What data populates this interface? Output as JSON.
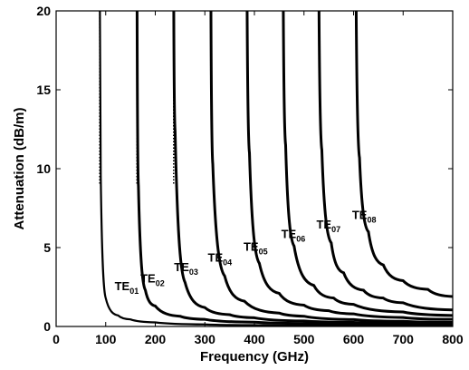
{
  "chart_data": {
    "type": "line",
    "title": "",
    "xlabel": "Frequency (GHz)",
    "ylabel": "Attenuation (dB/m)",
    "xlim": [
      0,
      800
    ],
    "ylim": [
      0,
      20
    ],
    "xticks": [
      0,
      100,
      200,
      300,
      400,
      500,
      600,
      700,
      800
    ],
    "yticks": [
      0,
      5,
      10,
      15,
      20
    ],
    "grid": false,
    "legend": "none",
    "line_color": "#000000",
    "series": [
      {
        "label_base": "TE",
        "label_sub": "01",
        "cutoff_ghz": 88,
        "x": [
          88.3,
          90,
          100,
          125,
          150,
          200,
          300,
          400,
          500,
          600,
          700,
          800
        ],
        "y": [
          20,
          9.5,
          1.8,
          0.7,
          0.45,
          0.26,
          0.13,
          0.085,
          0.06,
          0.046,
          0.037,
          0.03
        ],
        "label_at": [
          118,
          2.3
        ]
      },
      {
        "label_base": "TE",
        "label_sub": "02",
        "cutoff_ghz": 163,
        "x": [
          163.3,
          166,
          180,
          200,
          250,
          300,
          400,
          500,
          600,
          700,
          800
        ],
        "y": [
          20,
          8.9,
          2.3,
          1.3,
          0.65,
          0.45,
          0.27,
          0.19,
          0.145,
          0.115,
          0.095
        ],
        "label_at": [
          170,
          2.8
        ]
      },
      {
        "label_base": "TE",
        "label_sub": "03",
        "cutoff_ghz": 237,
        "x": [
          237.3,
          240,
          260,
          300,
          350,
          400,
          500,
          600,
          700,
          800
        ],
        "y": [
          20,
          12.4,
          2.8,
          1.2,
          0.75,
          0.55,
          0.35,
          0.26,
          0.2,
          0.165
        ],
        "label_at": [
          238,
          3.5
        ]
      },
      {
        "label_base": "TE",
        "label_sub": "04",
        "cutoff_ghz": 312,
        "x": [
          312.3,
          316,
          340,
          380,
          450,
          500,
          600,
          700,
          800
        ],
        "y": [
          20,
          10.3,
          3.2,
          1.6,
          0.85,
          0.65,
          0.44,
          0.33,
          0.26
        ],
        "label_at": [
          306,
          4.1
        ]
      },
      {
        "label_base": "TE",
        "label_sub": "05",
        "cutoff_ghz": 385,
        "x": [
          385.3,
          390,
          410,
          450,
          500,
          550,
          600,
          700,
          800
        ],
        "y": [
          20,
          11.0,
          4.0,
          2.1,
          1.35,
          1.0,
          0.8,
          0.57,
          0.45
        ],
        "label_at": [
          378,
          4.8
        ]
      },
      {
        "label_base": "TE",
        "label_sub": "06",
        "cutoff_ghz": 458,
        "x": [
          458.3,
          463,
          480,
          520,
          560,
          600,
          700,
          800
        ],
        "y": [
          20,
          11.5,
          5.1,
          2.6,
          1.8,
          1.4,
          0.92,
          0.7
        ],
        "label_at": [
          454,
          5.6
        ]
      },
      {
        "label_base": "TE",
        "label_sub": "07",
        "cutoff_ghz": 530,
        "x": [
          530.3,
          536,
          555,
          580,
          620,
          660,
          700,
          800
        ],
        "y": [
          20,
          11.2,
          5.3,
          3.4,
          2.3,
          1.8,
          1.5,
          1.05
        ],
        "label_at": [
          525,
          6.2
        ]
      },
      {
        "label_base": "TE",
        "label_sub": "08",
        "cutoff_ghz": 605,
        "x": [
          605.3,
          612,
          630,
          660,
          700,
          750,
          800
        ],
        "y": [
          20,
          10.7,
          6.0,
          3.9,
          2.9,
          2.35,
          1.9
        ],
        "label_at": [
          597,
          6.8
        ]
      }
    ]
  }
}
